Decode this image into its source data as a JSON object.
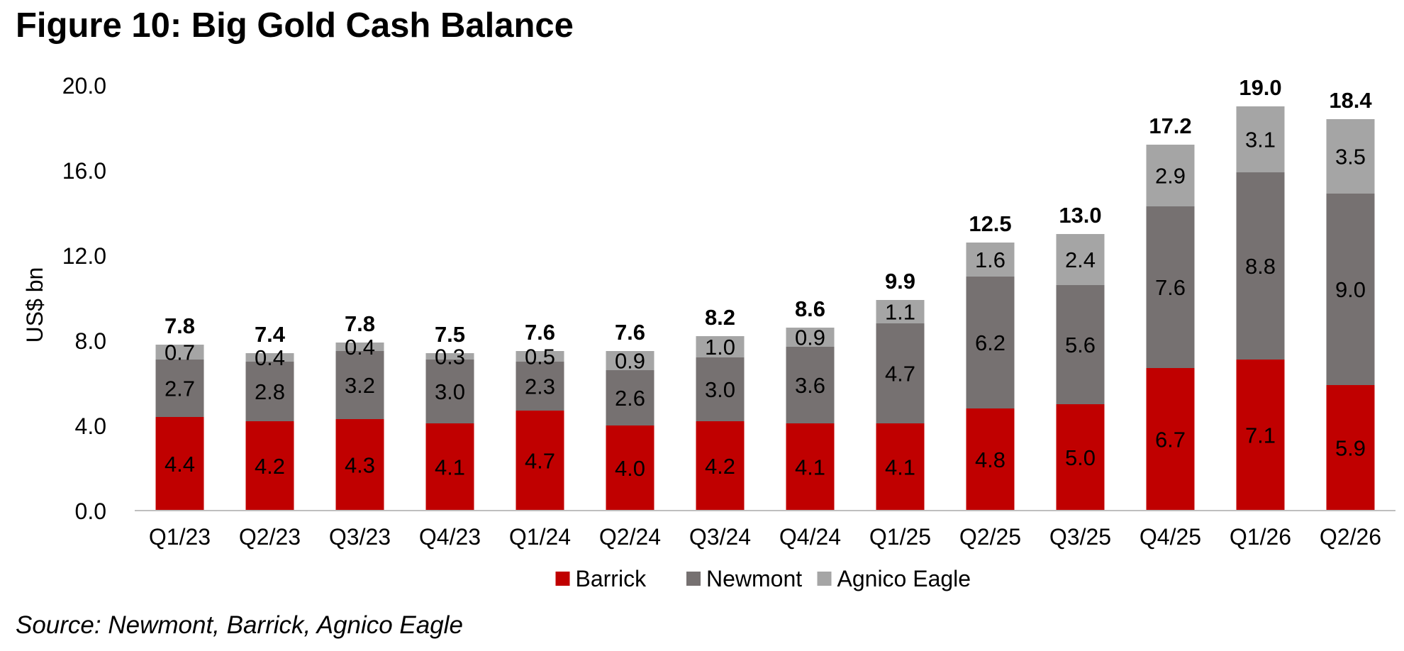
{
  "title": "Figure 10: Big Gold Cash Balance",
  "source": "Source: Newmont, Barrick, Agnico Eagle",
  "chart_data": {
    "type": "bar",
    "stacked": true,
    "categories": [
      "Q1/23",
      "Q2/23",
      "Q3/23",
      "Q4/23",
      "Q1/24",
      "Q2/24",
      "Q3/24",
      "Q4/24",
      "Q1/25",
      "Q2/25",
      "Q3/25",
      "Q4/25",
      "Q1/26",
      "Q2/26"
    ],
    "series": [
      {
        "name": "Barrick",
        "color": "#c00000",
        "values": [
          4.4,
          4.2,
          4.3,
          4.1,
          4.7,
          4.0,
          4.2,
          4.1,
          4.1,
          4.8,
          5.0,
          6.7,
          7.1,
          5.9
        ]
      },
      {
        "name": "Newmont",
        "color": "#767171",
        "values": [
          2.7,
          2.8,
          3.2,
          3.0,
          2.3,
          2.6,
          3.0,
          3.6,
          4.7,
          6.2,
          5.6,
          7.6,
          8.8,
          9.0
        ]
      },
      {
        "name": "Agnico Eagle",
        "color": "#a5a5a5",
        "values": [
          0.7,
          0.4,
          0.4,
          0.3,
          0.5,
          0.9,
          1.0,
          0.9,
          1.1,
          1.6,
          2.4,
          2.9,
          3.1,
          3.5
        ]
      }
    ],
    "totals": [
      7.8,
      7.4,
      7.8,
      7.5,
      7.6,
      7.6,
      8.2,
      8.6,
      9.9,
      12.5,
      13.0,
      17.2,
      19.0,
      18.4
    ],
    "ylabel": "US$ bn",
    "xlabel": "",
    "ylim": [
      0,
      20
    ],
    "yticks": [
      "0.0",
      "4.0",
      "8.0",
      "12.0",
      "16.0",
      "20.0"
    ],
    "grid": false,
    "legend": "bottom"
  }
}
